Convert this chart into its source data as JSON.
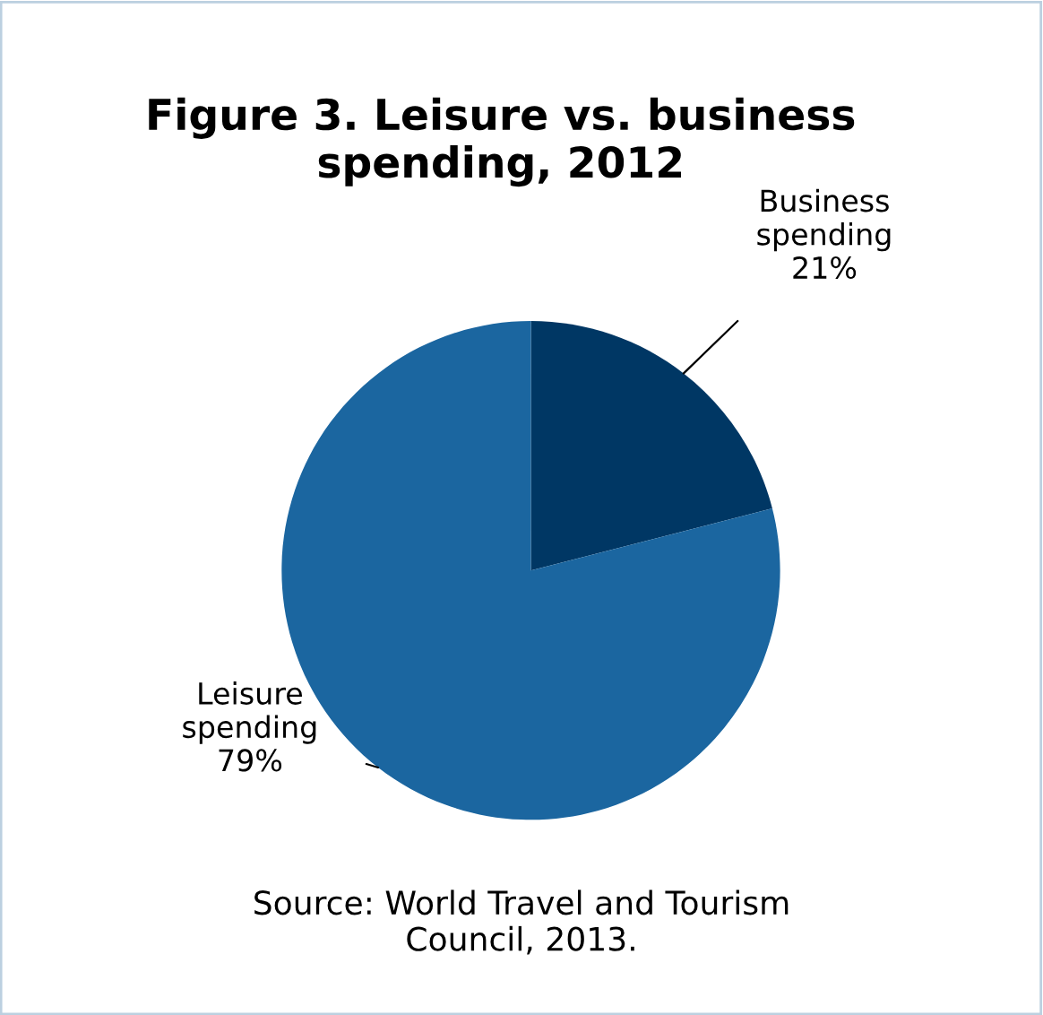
{
  "chart_data": {
    "type": "pie",
    "title": "Figure 3. Leisure vs. business\nspending, 2012",
    "categories": [
      "Business\nspending",
      "Leisure\nspending"
    ],
    "values": [
      21,
      79
    ],
    "colors": [
      "#003764",
      "#1b66a0"
    ],
    "value_labels": [
      "21%",
      "79%"
    ],
    "annotations": [
      "Source: World Travel and Tourism\nCouncil, 2013."
    ]
  }
}
